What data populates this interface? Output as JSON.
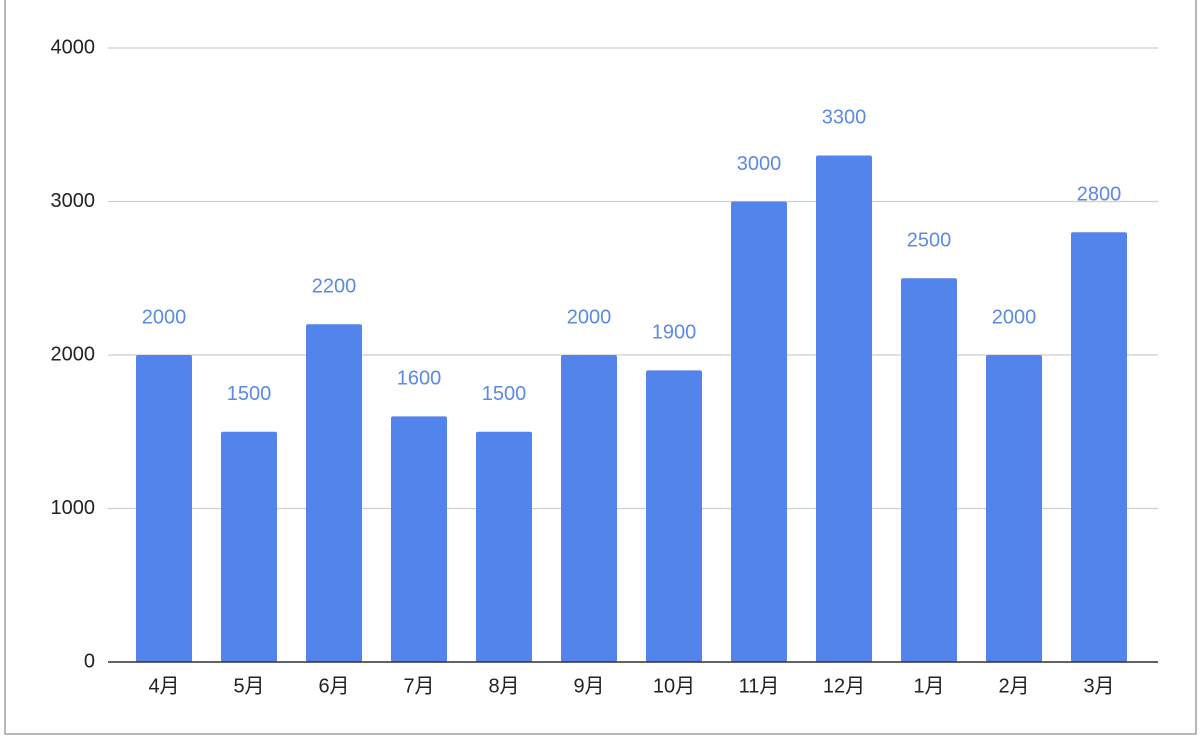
{
  "chart_data": {
    "type": "bar",
    "categories": [
      "4月",
      "5月",
      "6月",
      "7月",
      "8月",
      "9月",
      "10月",
      "11月",
      "12月",
      "1月",
      "2月",
      "3月"
    ],
    "values": [
      2000,
      1500,
      2200,
      1600,
      1500,
      2000,
      1900,
      3000,
      3300,
      2500,
      2000,
      2800
    ],
    "color": "#5384ec",
    "label_color": "#5b8ae2",
    "ylim": [
      0,
      4000
    ],
    "yticks": [
      0,
      1000,
      2000,
      3000,
      4000
    ],
    "grid": true
  }
}
